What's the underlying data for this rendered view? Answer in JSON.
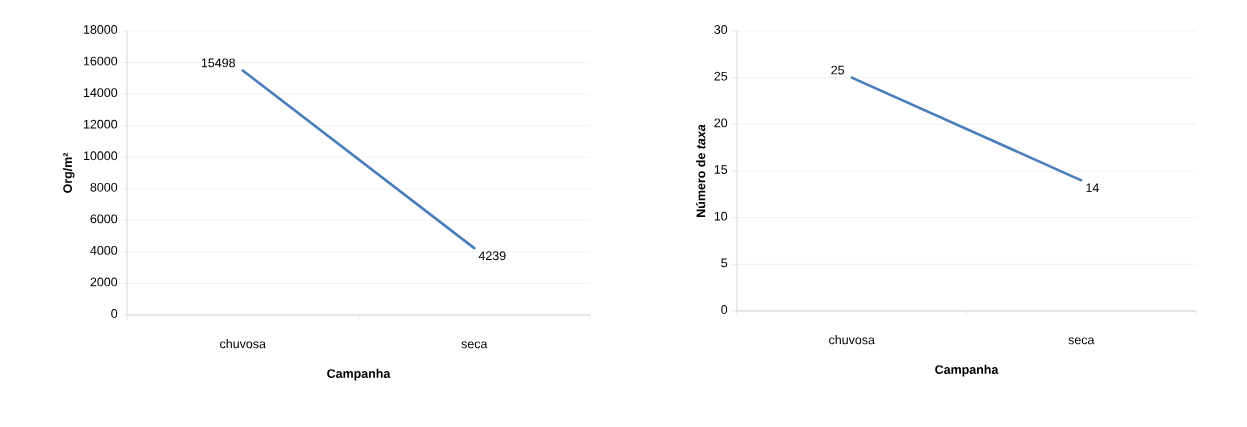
{
  "chart_data": [
    {
      "type": "line",
      "categories": [
        "chuvosa",
        "seca"
      ],
      "values": [
        15498,
        4239
      ],
      "color": "#4a7ebb",
      "xlabel": "Campanha",
      "ylabel": "Org/m²",
      "ylim": [
        0,
        18000
      ],
      "yticks": [
        0,
        2000,
        4000,
        6000,
        8000,
        10000,
        12000,
        14000,
        16000,
        18000
      ],
      "grid": "y",
      "data_labels": true
    },
    {
      "type": "line",
      "categories": [
        "chuvosa",
        "seca"
      ],
      "values": [
        25,
        14
      ],
      "color": "#4a7ebb",
      "xlabel": "Campanha",
      "ylabel": "Número de *taxa*",
      "ylim": [
        0,
        30
      ],
      "yticks": [
        0,
        5,
        10,
        15,
        20,
        25,
        30
      ],
      "grid": "y",
      "data_labels": true
    }
  ]
}
